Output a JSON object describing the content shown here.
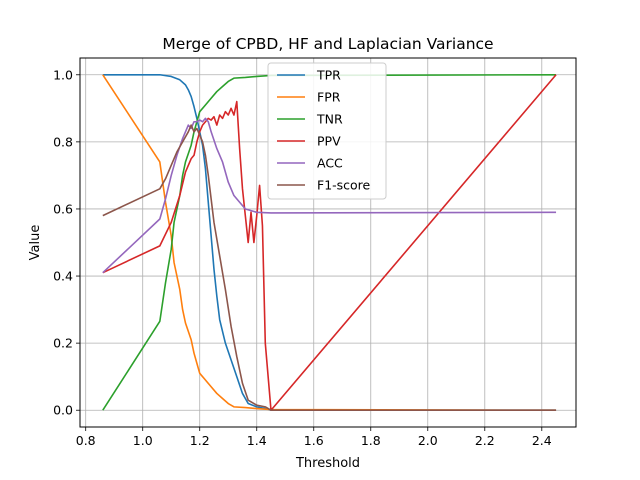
{
  "chart_data": {
    "type": "line",
    "title": "Merge of CPBD, HF and Laplacian Variance",
    "xlabel": "Threshold",
    "ylabel": "Value",
    "xlim": [
      0.78,
      2.52
    ],
    "ylim": [
      -0.05,
      1.05
    ],
    "xticks": [
      0.8,
      1.0,
      1.2,
      1.4,
      1.6,
      1.8,
      2.0,
      2.2,
      2.4
    ],
    "xtick_labels": [
      "0.8",
      "1.0",
      "1.2",
      "1.4",
      "1.6",
      "1.8",
      "2.0",
      "2.2",
      "2.4"
    ],
    "yticks": [
      0.0,
      0.2,
      0.4,
      0.6,
      0.8,
      1.0
    ],
    "ytick_labels": [
      "0.0",
      "0.2",
      "0.4",
      "0.6",
      "0.8",
      "1.0"
    ],
    "grid": true,
    "legend_position": "top-center",
    "series": [
      {
        "name": "TPR",
        "color": "#1f77b4",
        "points": [
          [
            0.86,
            1.0
          ],
          [
            1.06,
            1.0
          ],
          [
            1.1,
            0.995
          ],
          [
            1.13,
            0.985
          ],
          [
            1.15,
            0.97
          ],
          [
            1.16,
            0.955
          ],
          [
            1.17,
            0.935
          ],
          [
            1.18,
            0.905
          ],
          [
            1.19,
            0.87
          ],
          [
            1.2,
            0.83
          ],
          [
            1.21,
            0.79
          ],
          [
            1.22,
            0.72
          ],
          [
            1.23,
            0.62
          ],
          [
            1.24,
            0.52
          ],
          [
            1.25,
            0.42
          ],
          [
            1.26,
            0.34
          ],
          [
            1.27,
            0.27
          ],
          [
            1.29,
            0.2
          ],
          [
            1.31,
            0.15
          ],
          [
            1.33,
            0.1
          ],
          [
            1.35,
            0.05
          ],
          [
            1.37,
            0.02
          ],
          [
            1.4,
            0.01
          ],
          [
            1.43,
            0.005
          ],
          [
            1.45,
            0.0
          ],
          [
            2.45,
            0.0
          ]
        ]
      },
      {
        "name": "FPR",
        "color": "#ff7f0e",
        "points": [
          [
            0.86,
            1.0
          ],
          [
            1.06,
            0.74
          ],
          [
            1.08,
            0.62
          ],
          [
            1.1,
            0.52
          ],
          [
            1.11,
            0.44
          ],
          [
            1.13,
            0.36
          ],
          [
            1.14,
            0.3
          ],
          [
            1.15,
            0.26
          ],
          [
            1.17,
            0.21
          ],
          [
            1.18,
            0.17
          ],
          [
            1.19,
            0.14
          ],
          [
            1.2,
            0.11
          ],
          [
            1.22,
            0.09
          ],
          [
            1.24,
            0.07
          ],
          [
            1.26,
            0.05
          ],
          [
            1.28,
            0.035
          ],
          [
            1.3,
            0.02
          ],
          [
            1.32,
            0.01
          ],
          [
            1.36,
            0.008
          ],
          [
            1.4,
            0.005
          ],
          [
            1.45,
            0.002
          ],
          [
            2.45,
            0.0
          ]
        ]
      },
      {
        "name": "TNR",
        "color": "#2ca02c",
        "points": [
          [
            0.86,
            0.0
          ],
          [
            1.06,
            0.265
          ],
          [
            1.08,
            0.38
          ],
          [
            1.1,
            0.48
          ],
          [
            1.11,
            0.56
          ],
          [
            1.13,
            0.64
          ],
          [
            1.14,
            0.7
          ],
          [
            1.15,
            0.74
          ],
          [
            1.17,
            0.79
          ],
          [
            1.18,
            0.83
          ],
          [
            1.19,
            0.86
          ],
          [
            1.2,
            0.89
          ],
          [
            1.22,
            0.91
          ],
          [
            1.24,
            0.93
          ],
          [
            1.26,
            0.95
          ],
          [
            1.28,
            0.965
          ],
          [
            1.3,
            0.98
          ],
          [
            1.32,
            0.99
          ],
          [
            1.36,
            0.992
          ],
          [
            1.4,
            0.995
          ],
          [
            1.45,
            0.998
          ],
          [
            2.45,
            1.0
          ]
        ]
      },
      {
        "name": "PPV",
        "color": "#d62728",
        "points": [
          [
            0.86,
            0.41
          ],
          [
            1.06,
            0.49
          ],
          [
            1.1,
            0.56
          ],
          [
            1.13,
            0.64
          ],
          [
            1.15,
            0.71
          ],
          [
            1.17,
            0.75
          ],
          [
            1.18,
            0.76
          ],
          [
            1.19,
            0.8
          ],
          [
            1.2,
            0.83
          ],
          [
            1.21,
            0.85
          ],
          [
            1.22,
            0.86
          ],
          [
            1.23,
            0.87
          ],
          [
            1.24,
            0.865
          ],
          [
            1.25,
            0.875
          ],
          [
            1.26,
            0.85
          ],
          [
            1.27,
            0.88
          ],
          [
            1.28,
            0.87
          ],
          [
            1.29,
            0.89
          ],
          [
            1.3,
            0.88
          ],
          [
            1.31,
            0.9
          ],
          [
            1.32,
            0.88
          ],
          [
            1.33,
            0.92
          ],
          [
            1.34,
            0.78
          ],
          [
            1.35,
            0.66
          ],
          [
            1.36,
            0.58
          ],
          [
            1.37,
            0.5
          ],
          [
            1.38,
            0.59
          ],
          [
            1.39,
            0.5
          ],
          [
            1.4,
            0.58
          ],
          [
            1.41,
            0.67
          ],
          [
            1.42,
            0.55
          ],
          [
            1.43,
            0.2
          ],
          [
            1.45,
            0.0
          ],
          [
            2.45,
            1.0
          ]
        ]
      },
      {
        "name": "ACC",
        "color": "#9467bd",
        "points": [
          [
            0.86,
            0.41
          ],
          [
            1.06,
            0.57
          ],
          [
            1.08,
            0.63
          ],
          [
            1.1,
            0.7
          ],
          [
            1.12,
            0.76
          ],
          [
            1.14,
            0.81
          ],
          [
            1.16,
            0.85
          ],
          [
            1.17,
            0.84
          ],
          [
            1.18,
            0.86
          ],
          [
            1.19,
            0.86
          ],
          [
            1.2,
            0.865
          ],
          [
            1.21,
            0.86
          ],
          [
            1.22,
            0.87
          ],
          [
            1.23,
            0.86
          ],
          [
            1.24,
            0.83
          ],
          [
            1.26,
            0.78
          ],
          [
            1.28,
            0.74
          ],
          [
            1.3,
            0.68
          ],
          [
            1.32,
            0.64
          ],
          [
            1.34,
            0.62
          ],
          [
            1.36,
            0.6
          ],
          [
            1.38,
            0.595
          ],
          [
            1.4,
            0.59
          ],
          [
            1.45,
            0.588
          ],
          [
            2.45,
            0.59
          ]
        ]
      },
      {
        "name": "F1-score",
        "color": "#8c564b",
        "points": [
          [
            0.86,
            0.58
          ],
          [
            1.06,
            0.66
          ],
          [
            1.08,
            0.69
          ],
          [
            1.1,
            0.73
          ],
          [
            1.12,
            0.77
          ],
          [
            1.14,
            0.8
          ],
          [
            1.16,
            0.83
          ],
          [
            1.17,
            0.85
          ],
          [
            1.18,
            0.83
          ],
          [
            1.19,
            0.84
          ],
          [
            1.2,
            0.82
          ],
          [
            1.21,
            0.8
          ],
          [
            1.22,
            0.76
          ],
          [
            1.23,
            0.7
          ],
          [
            1.24,
            0.63
          ],
          [
            1.25,
            0.56
          ],
          [
            1.27,
            0.46
          ],
          [
            1.29,
            0.36
          ],
          [
            1.31,
            0.25
          ],
          [
            1.33,
            0.16
          ],
          [
            1.35,
            0.08
          ],
          [
            1.37,
            0.03
          ],
          [
            1.4,
            0.015
          ],
          [
            1.43,
            0.01
          ],
          [
            1.45,
            0.0
          ],
          [
            2.45,
            0.0
          ]
        ]
      }
    ]
  }
}
